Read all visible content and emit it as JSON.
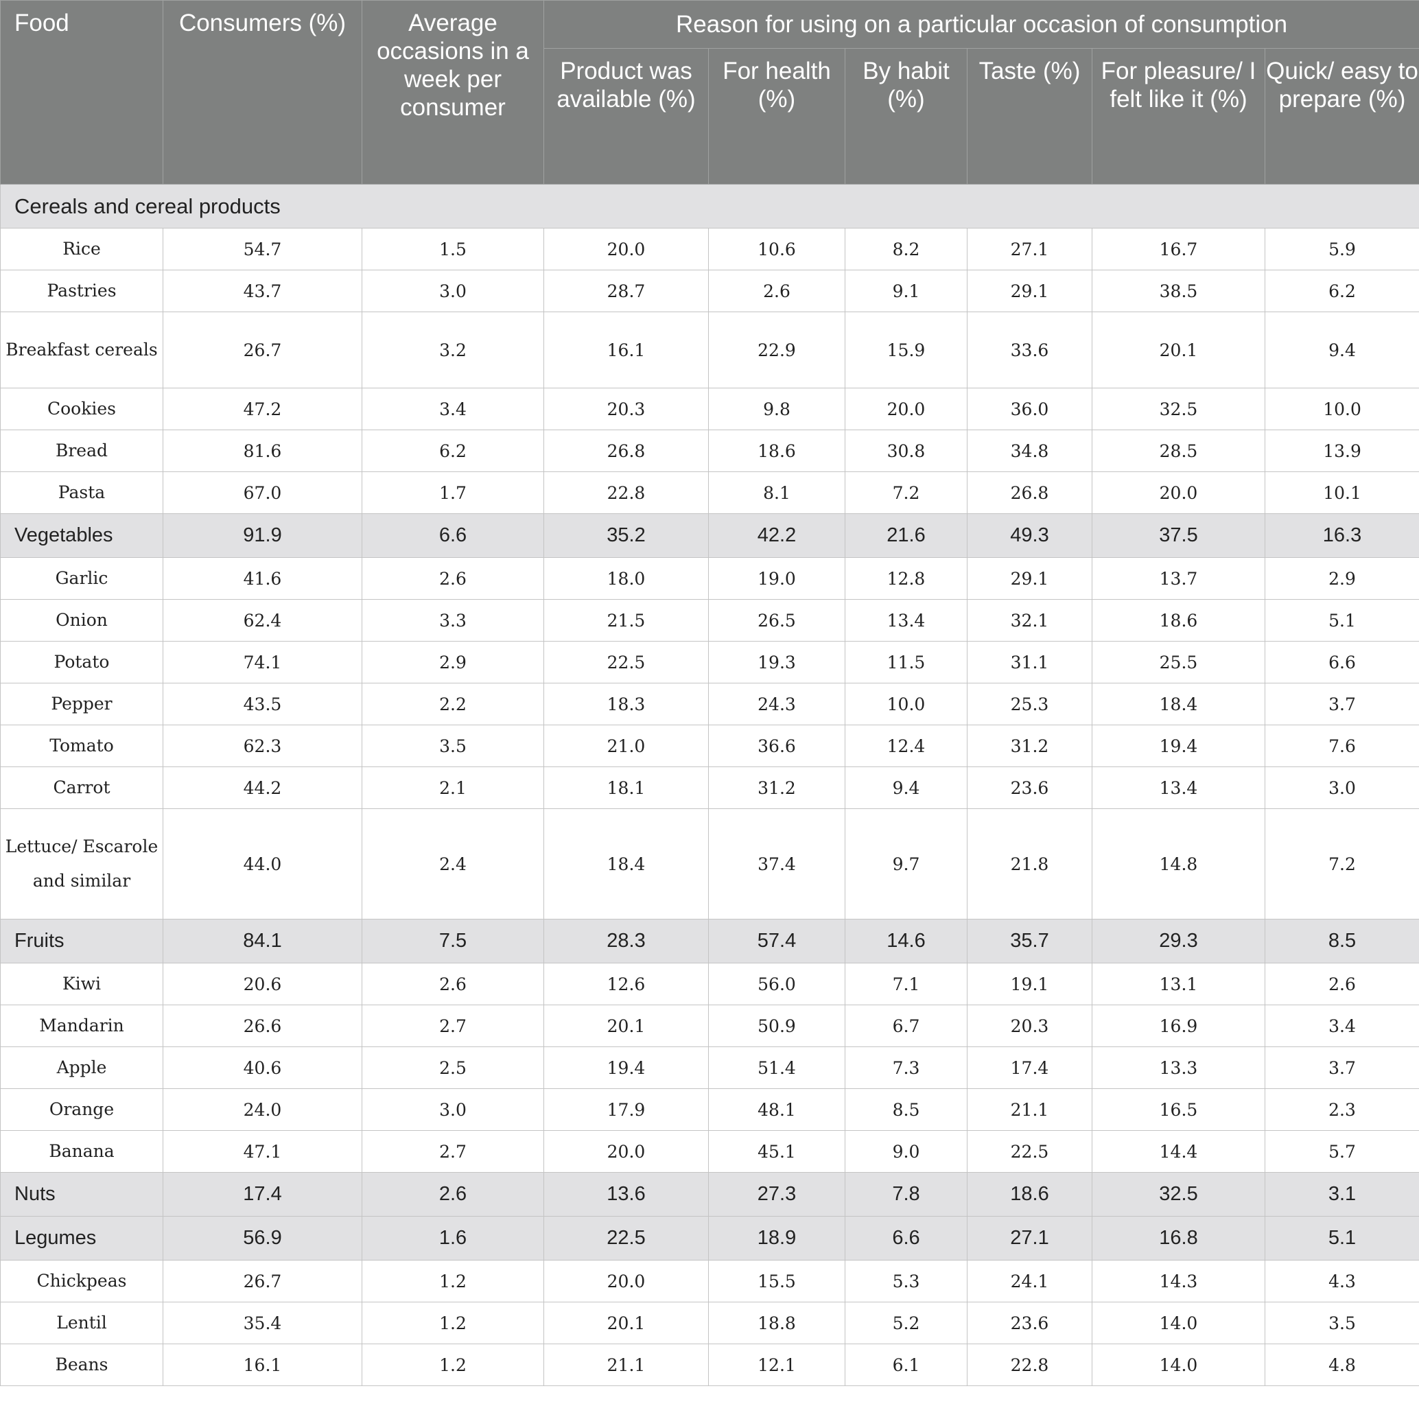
{
  "table": {
    "headers": {
      "food": "Food",
      "consumers": "Consumers (%)",
      "occasions": "Average occasions in a week per consumer",
      "reason_group": "Reason for using on a particular occasion of consumption",
      "reasons": [
        "Product was available (%)",
        "For health (%)",
        "By habit (%)",
        "Taste (%)",
        "For pleasure/ I felt like it (%)",
        "Quick/ easy to prepare (%)"
      ]
    },
    "section_cereals": "Cereals and cereal products",
    "rows": [
      {
        "name": "Rice",
        "values": [
          "54.7",
          "1.5",
          "20.0",
          "10.6",
          "8.2",
          "27.1",
          "16.7",
          "5.9"
        ]
      },
      {
        "name": "Pastries",
        "values": [
          "43.7",
          "3.0",
          "28.7",
          "2.6",
          "9.1",
          "29.1",
          "38.5",
          "6.2"
        ]
      },
      {
        "name": "Breakfast cereals",
        "values": [
          "26.7",
          "3.2",
          "16.1",
          "22.9",
          "15.9",
          "33.6",
          "20.1",
          "9.4"
        ]
      },
      {
        "name": "Cookies",
        "values": [
          "47.2",
          "3.4",
          "20.3",
          "9.8",
          "20.0",
          "36.0",
          "32.5",
          "10.0"
        ]
      },
      {
        "name": "Bread",
        "values": [
          "81.6",
          "6.2",
          "26.8",
          "18.6",
          "30.8",
          "34.8",
          "28.5",
          "13.9"
        ]
      },
      {
        "name": "Pasta",
        "values": [
          "67.0",
          "1.7",
          "22.8",
          "8.1",
          "7.2",
          "26.8",
          "20.0",
          "10.1"
        ]
      },
      {
        "name": "Vegetables",
        "values": [
          "91.9",
          "6.6",
          "35.2",
          "42.2",
          "21.6",
          "49.3",
          "37.5",
          "16.3"
        ]
      },
      {
        "name": "Garlic",
        "values": [
          "41.6",
          "2.6",
          "18.0",
          "19.0",
          "12.8",
          "29.1",
          "13.7",
          "2.9"
        ]
      },
      {
        "name": "Onion",
        "values": [
          "62.4",
          "3.3",
          "21.5",
          "26.5",
          "13.4",
          "32.1",
          "18.6",
          "5.1"
        ]
      },
      {
        "name": "Potato",
        "values": [
          "74.1",
          "2.9",
          "22.5",
          "19.3",
          "11.5",
          "31.1",
          "25.5",
          "6.6"
        ]
      },
      {
        "name": "Pepper",
        "values": [
          "43.5",
          "2.2",
          "18.3",
          "24.3",
          "10.0",
          "25.3",
          "18.4",
          "3.7"
        ]
      },
      {
        "name": "Tomato",
        "values": [
          "62.3",
          "3.5",
          "21.0",
          "36.6",
          "12.4",
          "31.2",
          "19.4",
          "7.6"
        ]
      },
      {
        "name": "Carrot",
        "values": [
          "44.2",
          "2.1",
          "18.1",
          "31.2",
          "9.4",
          "23.6",
          "13.4",
          "3.0"
        ]
      },
      {
        "name": "Lettuce/ Escarole and similar",
        "values": [
          "44.0",
          "2.4",
          "18.4",
          "37.4",
          "9.7",
          "21.8",
          "14.8",
          "7.2"
        ]
      },
      {
        "name": "Fruits",
        "values": [
          "84.1",
          "7.5",
          "28.3",
          "57.4",
          "14.6",
          "35.7",
          "29.3",
          "8.5"
        ]
      },
      {
        "name": "Kiwi",
        "values": [
          "20.6",
          "2.6",
          "12.6",
          "56.0",
          "7.1",
          "19.1",
          "13.1",
          "2.6"
        ]
      },
      {
        "name": "Mandarin",
        "values": [
          "26.6",
          "2.7",
          "20.1",
          "50.9",
          "6.7",
          "20.3",
          "16.9",
          "3.4"
        ]
      },
      {
        "name": "Apple",
        "values": [
          "40.6",
          "2.5",
          "19.4",
          "51.4",
          "7.3",
          "17.4",
          "13.3",
          "3.7"
        ]
      },
      {
        "name": "Orange",
        "values": [
          "24.0",
          "3.0",
          "17.9",
          "48.1",
          "8.5",
          "21.1",
          "16.5",
          "2.3"
        ]
      },
      {
        "name": "Banana",
        "values": [
          "47.1",
          "2.7",
          "20.0",
          "45.1",
          "9.0",
          "22.5",
          "14.4",
          "5.7"
        ]
      },
      {
        "name": "Nuts",
        "values": [
          "17.4",
          "2.6",
          "13.6",
          "27.3",
          "7.8",
          "18.6",
          "32.5",
          "3.1"
        ]
      },
      {
        "name": "Legumes",
        "values": [
          "56.9",
          "1.6",
          "22.5",
          "18.9",
          "6.6",
          "27.1",
          "16.8",
          "5.1"
        ]
      },
      {
        "name": "Chickpeas",
        "values": [
          "26.7",
          "1.2",
          "20.0",
          "15.5",
          "5.3",
          "24.1",
          "14.3",
          "4.3"
        ]
      },
      {
        "name": "Lentil",
        "values": [
          "35.4",
          "1.2",
          "20.1",
          "18.8",
          "5.2",
          "23.6",
          "14.0",
          "3.5"
        ]
      },
      {
        "name": "Beans",
        "values": [
          "16.1",
          "1.2",
          "21.1",
          "12.1",
          "6.1",
          "22.8",
          "14.0",
          "4.8"
        ]
      }
    ]
  },
  "colors": {
    "header_bg": "#7f8180",
    "header_text": "#ffffff",
    "section_bg": "#e1e1e3",
    "grid": "#c4c4c4"
  }
}
